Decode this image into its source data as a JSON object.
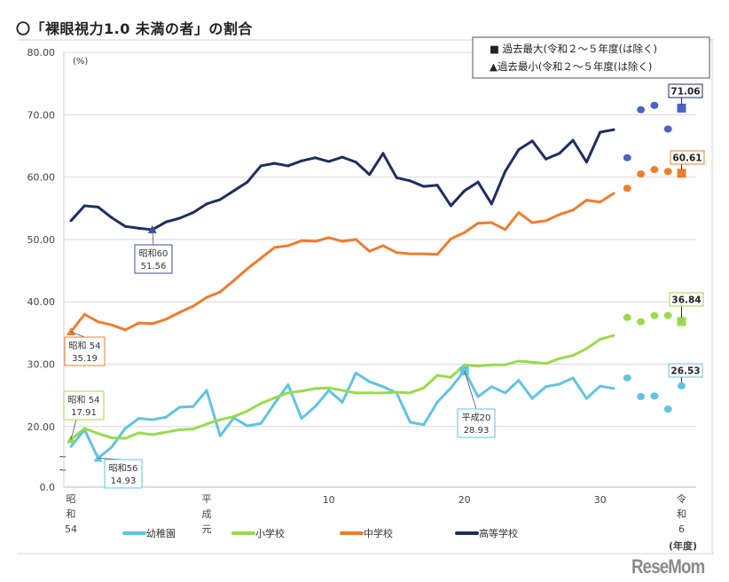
{
  "title": "〇「裸眼視力1.0 未満の者」の割合",
  "logo": "ReseMom",
  "chart_data": {
    "type": "line",
    "title": "〇「裸眼視力1.0 未満の者」の割合",
    "ylabel": "(%)",
    "xlabel": "(年度)",
    "ylim": [
      0,
      80
    ],
    "yticks": [
      "80.00",
      "70.00",
      "60.00",
      "50.00",
      "40.00",
      "30.00",
      "20.00",
      "0.0"
    ],
    "ytick_values": [
      80,
      70,
      60,
      50,
      40,
      30,
      20,
      0
    ],
    "broken_axis_marks": [
      "~",
      "~"
    ],
    "x": [
      1979,
      1980,
      1981,
      1982,
      1983,
      1984,
      1985,
      1986,
      1987,
      1988,
      1989,
      1990,
      1991,
      1992,
      1993,
      1994,
      1995,
      1996,
      1997,
      1998,
      1999,
      2000,
      2001,
      2002,
      2003,
      2004,
      2005,
      2006,
      2007,
      2008,
      2009,
      2010,
      2011,
      2012,
      2013,
      2014,
      2015,
      2016,
      2017,
      2018,
      2019
    ],
    "x_dots": [
      2020,
      2021,
      2022,
      2023
    ],
    "x_latest": 2024,
    "xticks": [
      {
        "year": 1979,
        "label": [
          "昭",
          "和",
          "54"
        ]
      },
      {
        "year": 1989,
        "label": [
          "平",
          "成",
          "元"
        ]
      },
      {
        "year": 1998,
        "label": [
          "10"
        ]
      },
      {
        "year": 2008,
        "label": [
          "20"
        ]
      },
      {
        "year": 2018,
        "label": [
          "30"
        ]
      },
      {
        "year": 2024,
        "label": [
          "令",
          "和",
          "6"
        ]
      }
    ],
    "legend_box": [
      "■ 過去最大(令和２～５年度(は除く)",
      "▲過去最小(令和２～５年度(は除く)"
    ],
    "series": [
      {
        "name": "幼稚園",
        "color": "#62c3e3",
        "values": [
          16.8,
          19.5,
          14.93,
          16.7,
          19.7,
          21.3,
          21.1,
          21.5,
          23.1,
          23.2,
          25.8,
          18.5,
          21.4,
          20.1,
          20.5,
          23.7,
          26.7,
          21.3,
          23.2,
          25.8,
          23.9,
          28.6,
          27.2,
          26.4,
          25.4,
          20.7,
          20.3,
          23.9,
          26.2,
          28.93,
          24.8,
          26.4,
          25.4,
          27.4,
          24.5,
          26.4,
          26.8,
          27.8,
          24.5,
          26.5,
          26.1
        ],
        "dots": [
          27.8,
          24.8,
          24.9,
          22.8
        ],
        "latest": 26.53,
        "latest_label": "26.53",
        "max": {
          "year": 2008,
          "era": "平成20",
          "value": "28.93"
        },
        "min": {
          "year": 1981,
          "era": "昭和56",
          "value": "14.93"
        }
      },
      {
        "name": "小学校",
        "color": "#9bd94e",
        "values": [
          17.91,
          19.7,
          18.9,
          18.2,
          18.1,
          19.0,
          18.7,
          19.1,
          19.5,
          19.6,
          20.4,
          21.1,
          21.6,
          22.5,
          23.7,
          24.6,
          25.4,
          25.7,
          26.1,
          26.2,
          25.8,
          25.4,
          25.4,
          25.4,
          25.5,
          25.4,
          26.2,
          28.2,
          27.9,
          29.9,
          29.7,
          29.9,
          29.9,
          30.5,
          30.3,
          30.1,
          30.9,
          31.4,
          32.5,
          34.0,
          34.6
        ],
        "dots": [
          37.5,
          36.8,
          37.8,
          37.8
        ],
        "latest": 36.84,
        "latest_label": "36.84",
        "min": {
          "year": 1979,
          "era": "昭和 54",
          "value": "17.91"
        }
      },
      {
        "name": "中学校",
        "color": "#ed7d31",
        "values": [
          35.19,
          38.0,
          36.8,
          36.3,
          35.5,
          36.6,
          36.5,
          37.2,
          38.3,
          39.3,
          40.7,
          41.6,
          43.4,
          45.3,
          47.0,
          48.7,
          49.0,
          49.8,
          49.7,
          50.3,
          49.7,
          50.0,
          48.1,
          49.0,
          47.9,
          47.7,
          47.7,
          47.6,
          50.1,
          51.1,
          52.6,
          52.7,
          51.6,
          54.3,
          52.7,
          53.0,
          54.0,
          54.7,
          56.3,
          56.0,
          57.4
        ],
        "dots": [
          58.2,
          60.5,
          61.2,
          60.9
        ],
        "latest": 60.61,
        "latest_label": "60.61",
        "min": {
          "year": 1979,
          "era": "昭和 54",
          "value": "35.19"
        }
      },
      {
        "name": "高等学校",
        "color": "#1f2d5f",
        "values": [
          53.0,
          55.4,
          55.2,
          53.5,
          52.1,
          51.8,
          51.56,
          52.8,
          53.4,
          54.3,
          55.7,
          56.4,
          57.8,
          59.2,
          61.8,
          62.2,
          61.8,
          62.6,
          63.1,
          62.5,
          63.2,
          62.4,
          60.4,
          63.8,
          59.9,
          59.4,
          58.5,
          58.7,
          55.4,
          57.8,
          59.2,
          55.7,
          60.9,
          64.4,
          65.8,
          62.9,
          63.8,
          65.9,
          62.4,
          67.2,
          67.6
        ],
        "dots": [
          63.1,
          70.8,
          71.5,
          67.7
        ],
        "latest": 71.06,
        "latest_label": "71.06",
        "min": {
          "year": 1985,
          "era": "昭和60",
          "value": "51.56"
        }
      }
    ]
  }
}
